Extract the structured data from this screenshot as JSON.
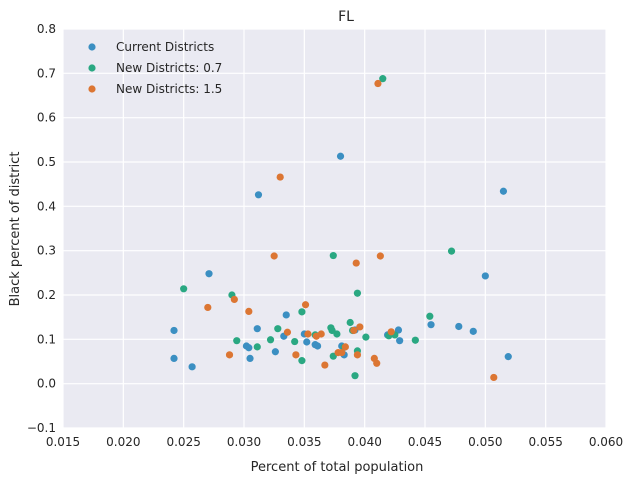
{
  "chart_data": {
    "type": "scatter",
    "title": "FL",
    "xlabel": "Percent of total population",
    "ylabel": "Black percent of district",
    "xlim": [
      0.015,
      0.06
    ],
    "ylim": [
      -0.1,
      0.8
    ],
    "xticks": [
      "0.015",
      "0.020",
      "0.025",
      "0.030",
      "0.035",
      "0.040",
      "0.045",
      "0.050",
      "0.055",
      "0.060"
    ],
    "yticks": [
      "−0.1",
      "0.0",
      "0.1",
      "0.2",
      "0.3",
      "0.4",
      "0.5",
      "0.6",
      "0.7",
      "0.8"
    ],
    "grid": true,
    "background": "#eaeaf2",
    "legend_position": "top-left",
    "series": [
      {
        "name": "Current Districts",
        "color": "#3b8fc2",
        "points": [
          [
            0.0242,
            0.12
          ],
          [
            0.0242,
            0.057
          ],
          [
            0.0257,
            0.038
          ],
          [
            0.0271,
            0.248
          ],
          [
            0.0302,
            0.085
          ],
          [
            0.0304,
            0.081
          ],
          [
            0.0305,
            0.057
          ],
          [
            0.0311,
            0.124
          ],
          [
            0.0312,
            0.426
          ],
          [
            0.0326,
            0.072
          ],
          [
            0.0333,
            0.107
          ],
          [
            0.0335,
            0.155
          ],
          [
            0.035,
            0.112
          ],
          [
            0.0352,
            0.094
          ],
          [
            0.0359,
            0.088
          ],
          [
            0.0361,
            0.085
          ],
          [
            0.038,
            0.513
          ],
          [
            0.0381,
            0.085
          ],
          [
            0.0383,
            0.065
          ],
          [
            0.0392,
            0.121
          ],
          [
            0.0419,
            0.11
          ],
          [
            0.0428,
            0.121
          ],
          [
            0.0429,
            0.097
          ],
          [
            0.0455,
            0.133
          ],
          [
            0.0478,
            0.129
          ],
          [
            0.049,
            0.118
          ],
          [
            0.05,
            0.243
          ],
          [
            0.0515,
            0.434
          ],
          [
            0.0519,
            0.061
          ]
        ]
      },
      {
        "name": "New Districts: 0.7",
        "color": "#2aa882",
        "points": [
          [
            0.025,
            0.214
          ],
          [
            0.029,
            0.2
          ],
          [
            0.0294,
            0.097
          ],
          [
            0.0311,
            0.083
          ],
          [
            0.0322,
            0.099
          ],
          [
            0.0328,
            0.124
          ],
          [
            0.0342,
            0.095
          ],
          [
            0.0348,
            0.162
          ],
          [
            0.0348,
            0.052
          ],
          [
            0.0359,
            0.11
          ],
          [
            0.0372,
            0.126
          ],
          [
            0.0373,
            0.12
          ],
          [
            0.0374,
            0.062
          ],
          [
            0.0374,
            0.289
          ],
          [
            0.0377,
            0.112
          ],
          [
            0.0383,
            0.082
          ],
          [
            0.0388,
            0.138
          ],
          [
            0.039,
            0.12
          ],
          [
            0.0392,
            0.018
          ],
          [
            0.0394,
            0.204
          ],
          [
            0.0394,
            0.074
          ],
          [
            0.0401,
            0.105
          ],
          [
            0.0415,
            0.688
          ],
          [
            0.042,
            0.108
          ],
          [
            0.0425,
            0.11
          ],
          [
            0.0442,
            0.098
          ],
          [
            0.0454,
            0.152
          ],
          [
            0.0472,
            0.299
          ]
        ]
      },
      {
        "name": "New Districts: 1.5",
        "color": "#dc7633",
        "points": [
          [
            0.027,
            0.172
          ],
          [
            0.0288,
            0.065
          ],
          [
            0.0292,
            0.19
          ],
          [
            0.0304,
            0.163
          ],
          [
            0.0325,
            0.288
          ],
          [
            0.033,
            0.466
          ],
          [
            0.0336,
            0.116
          ],
          [
            0.0343,
            0.065
          ],
          [
            0.0351,
            0.178
          ],
          [
            0.0353,
            0.112
          ],
          [
            0.036,
            0.107
          ],
          [
            0.0364,
            0.112
          ],
          [
            0.0367,
            0.042
          ],
          [
            0.0378,
            0.07
          ],
          [
            0.0381,
            0.07
          ],
          [
            0.0384,
            0.083
          ],
          [
            0.0391,
            0.12
          ],
          [
            0.0393,
            0.272
          ],
          [
            0.0394,
            0.065
          ],
          [
            0.0396,
            0.128
          ],
          [
            0.0408,
            0.057
          ],
          [
            0.041,
            0.046
          ],
          [
            0.0411,
            0.677
          ],
          [
            0.0413,
            0.288
          ],
          [
            0.0422,
            0.117
          ],
          [
            0.0507,
            0.014
          ]
        ]
      }
    ]
  }
}
